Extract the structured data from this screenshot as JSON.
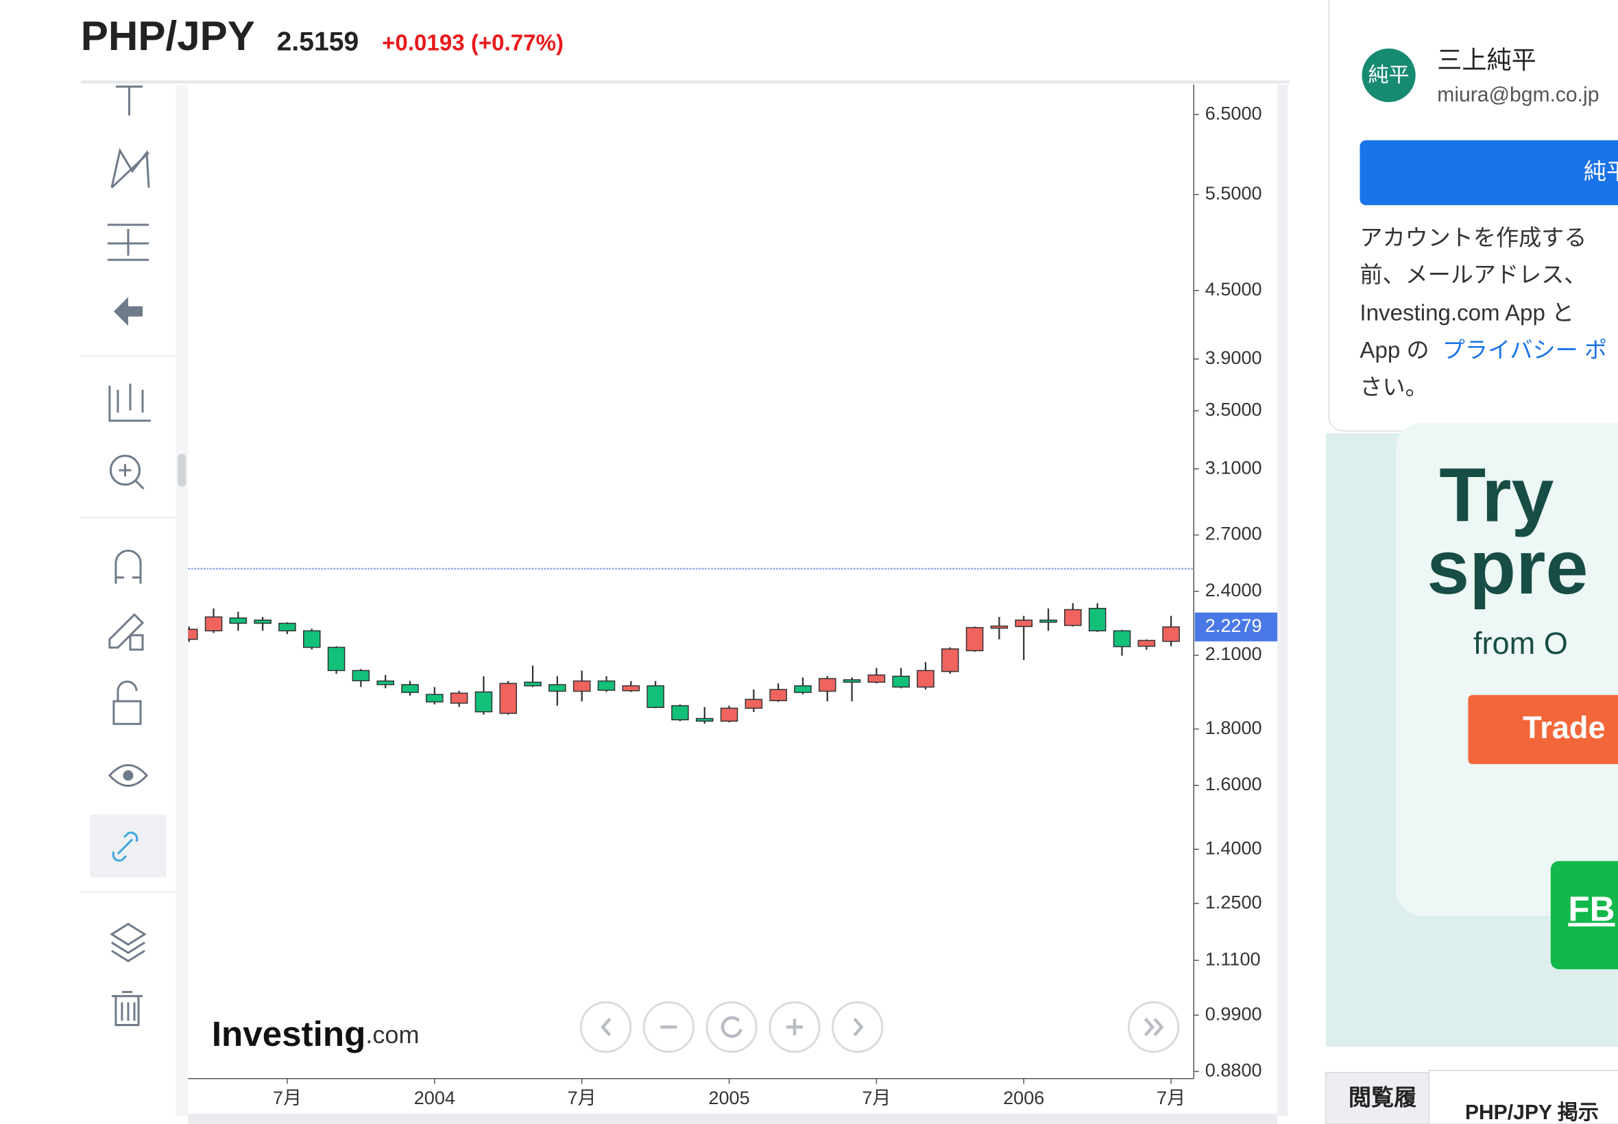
{
  "header": {
    "symbol": "PHP/JPY",
    "price": 2.5159,
    "change": "+0.0193 (+0.77%)"
  },
  "chart_data": {
    "type": "candlestick",
    "categories": [
      null,
      null,
      null,
      null,
      "7月",
      null,
      null,
      null,
      null,
      null,
      "2004",
      null,
      null,
      null,
      null,
      null,
      "7月",
      null,
      null,
      null,
      null,
      null,
      "2005",
      null,
      null,
      null,
      null,
      null,
      "7月",
      null,
      null,
      null,
      null,
      null,
      "2006",
      null,
      null,
      null,
      null,
      null,
      "7月"
    ],
    "open": [
      2.171,
      2.21,
      2.27,
      2.26,
      2.245,
      2.21,
      2.135,
      2.034,
      1.99,
      1.975,
      1.935,
      1.9,
      1.945,
      1.86,
      1.985,
      1.975,
      1.948,
      1.99,
      1.95,
      1.97,
      1.89,
      1.84,
      1.83,
      1.88,
      1.91,
      1.97,
      1.948,
      1.995,
      1.985,
      2.01,
      1.965,
      2.03,
      2.12,
      2.222,
      2.23,
      2.26,
      2.235,
      2.316,
      2.21,
      2.14,
      2.162
    ],
    "high": [
      2.23,
      2.316,
      2.3,
      2.275,
      2.25,
      2.22,
      2.14,
      2.04,
      2.015,
      1.99,
      1.965,
      1.95,
      2.01,
      1.99,
      2.055,
      2.01,
      2.034,
      2.01,
      1.99,
      1.99,
      1.895,
      1.885,
      1.89,
      1.955,
      1.98,
      2.005,
      2.01,
      2.005,
      2.045,
      2.045,
      2.07,
      2.135,
      2.23,
      2.275,
      2.28,
      2.316,
      2.341,
      2.341,
      2.215,
      2.17,
      2.28
    ],
    "low": [
      2.16,
      2.2,
      2.21,
      2.21,
      2.195,
      2.125,
      2.02,
      1.965,
      1.96,
      1.93,
      1.895,
      1.885,
      1.855,
      1.855,
      1.965,
      1.89,
      1.907,
      1.945,
      1.945,
      1.88,
      1.83,
      1.82,
      1.825,
      1.865,
      1.905,
      1.935,
      1.907,
      1.907,
      1.98,
      1.96,
      1.955,
      2.02,
      2.115,
      2.171,
      2.079,
      2.21,
      2.23,
      2.205,
      2.098,
      2.124,
      2.14
    ],
    "close": [
      2.217,
      2.275,
      2.245,
      2.245,
      2.21,
      2.135,
      2.034,
      1.991,
      1.975,
      1.943,
      1.905,
      1.94,
      1.866,
      1.98,
      1.97,
      1.948,
      1.99,
      1.952,
      1.97,
      1.883,
      1.835,
      1.83,
      1.88,
      1.915,
      1.955,
      1.943,
      2.0,
      1.985,
      2.015,
      1.965,
      2.034,
      2.128,
      2.225,
      2.232,
      2.26,
      2.25,
      2.31,
      2.21,
      2.138,
      2.166,
      2.2279
    ],
    "up_color": "#f0645f",
    "down_color": "#12c07a",
    "ylim": [
      0.867,
      6.92
    ],
    "log_scale": true,
    "yticks": [
      {
        "value": 6.5,
        "label": "6.5000"
      },
      {
        "value": 5.5,
        "label": "5.5000"
      },
      {
        "value": 4.5,
        "label": "4.5000"
      },
      {
        "value": 3.9,
        "label": "3.9000"
      },
      {
        "value": 3.5,
        "label": "3.5000"
      },
      {
        "value": 3.1,
        "label": "3.1000"
      },
      {
        "value": 2.7,
        "label": "2.7000"
      },
      {
        "value": 2.4,
        "label": "2.4000"
      },
      {
        "value": 2.1,
        "label": "2.1000"
      },
      {
        "value": 1.8,
        "label": "1.8000"
      },
      {
        "value": 1.6,
        "label": "1.6000"
      },
      {
        "value": 1.4,
        "label": "1.4000"
      },
      {
        "value": 1.25,
        "label": "1.2500"
      },
      {
        "value": 1.11,
        "label": "1.1100"
      },
      {
        "value": 0.99,
        "label": "0.9900"
      },
      {
        "value": 0.88,
        "label": "0.8800"
      }
    ],
    "last_price": 2.2279
  },
  "logo": {
    "name": "Investing",
    "suffix": ".com"
  },
  "account": {
    "avatar": "純平",
    "name": "三上純平",
    "email": "miura@bgm.co.jp",
    "button": "純平",
    "lines": [
      "アカウントを作成する",
      "前、メールアドレス、",
      "Investing.com App と",
      "App の",
      "さい。"
    ],
    "link": "プライバシー ポ"
  },
  "ad": {
    "line1": "Try",
    "line2": "spre",
    "line3": "from O",
    "button": "Trade",
    "badge": "FB"
  },
  "footer": {
    "tab": "閲覧履",
    "title": "PHP/JPY 掲示"
  }
}
